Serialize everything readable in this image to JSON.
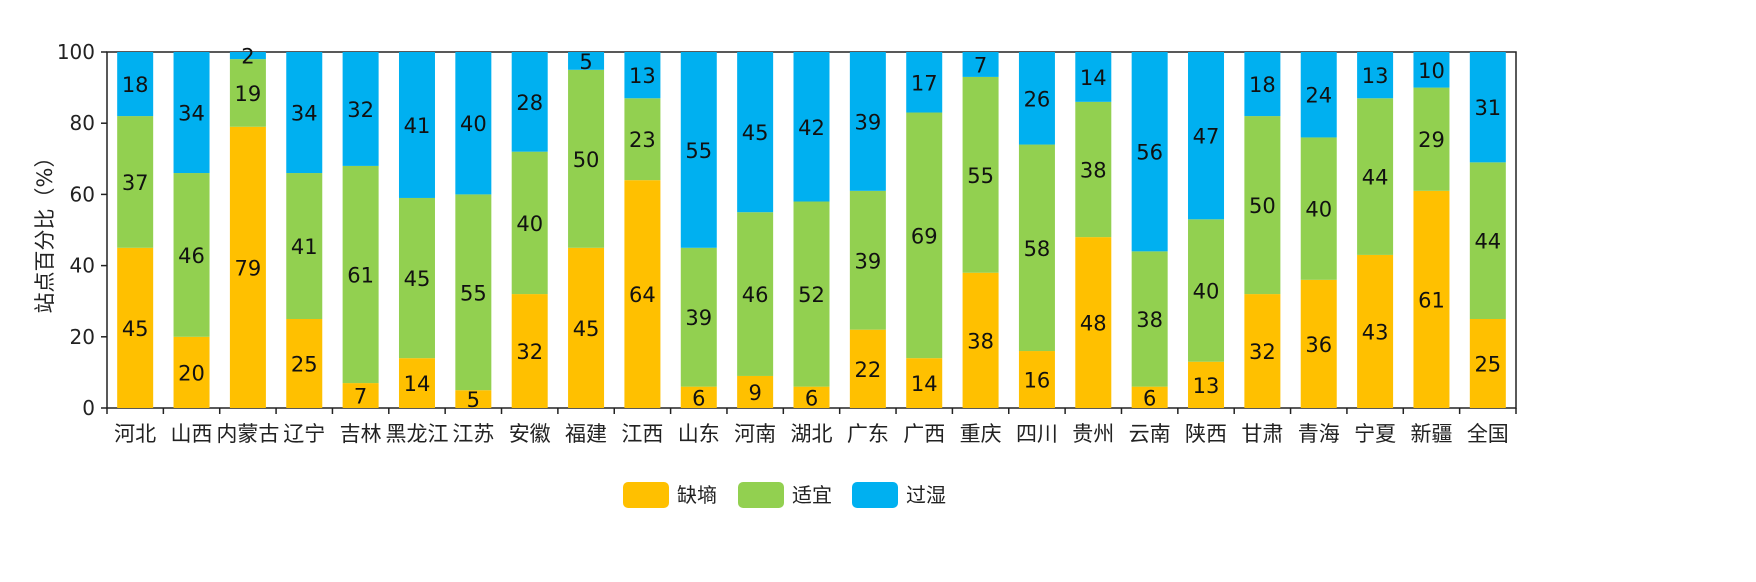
{
  "chart_data": {
    "type": "bar",
    "stacked": true,
    "ylabel": "站点百分比（%）",
    "ylim": [
      0,
      100
    ],
    "yticks": [
      0,
      20,
      40,
      60,
      80,
      100
    ],
    "grid": false,
    "legend_position": "bottom-center",
    "categories": [
      "河北",
      "山西",
      "内蒙古",
      "辽宁",
      "吉林",
      "黑龙江",
      "江苏",
      "安徽",
      "福建",
      "江西",
      "山东",
      "河南",
      "湖北",
      "广东",
      "广西",
      "重庆",
      "四川",
      "贵州",
      "云南",
      "陕西",
      "甘肃",
      "青海",
      "宁夏",
      "新疆",
      "全国"
    ],
    "series": [
      {
        "name": "缺墒",
        "color": "#FFC000",
        "values": [
          45,
          20,
          79,
          25,
          7,
          14,
          5,
          32,
          45,
          64,
          6,
          9,
          6,
          22,
          14,
          38,
          16,
          48,
          6,
          13,
          32,
          36,
          43,
          61,
          25
        ]
      },
      {
        "name": "适宜",
        "color": "#92D050",
        "values": [
          37,
          46,
          19,
          41,
          61,
          45,
          55,
          40,
          50,
          23,
          39,
          46,
          52,
          39,
          69,
          55,
          58,
          38,
          38,
          40,
          50,
          40,
          44,
          29,
          44
        ]
      },
      {
        "name": "过湿",
        "color": "#00B0F0",
        "values": [
          18,
          34,
          2,
          34,
          32,
          41,
          40,
          28,
          5,
          13,
          55,
          45,
          42,
          39,
          17,
          7,
          26,
          14,
          56,
          47,
          18,
          24,
          13,
          10,
          31
        ]
      }
    ]
  }
}
